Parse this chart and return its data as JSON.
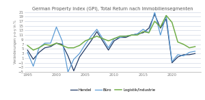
{
  "title": "German Property Index (GPI), Total Return nach Immobiliensegmenten",
  "ylabel": "Veränderungen y-o-y in %",
  "ylim": [
    -5,
    21
  ],
  "yticks": [
    -5,
    -3,
    -1,
    1,
    3,
    5,
    7,
    9,
    11,
    13,
    15,
    17,
    19,
    21
  ],
  "xlim": [
    1994.5,
    2025
  ],
  "xticks": [
    1995,
    2000,
    2005,
    2010,
    2015,
    2020
  ],
  "background_color": "#ffffff",
  "title_color": "#555555",
  "grid_color": "#d0d8e4",
  "series": {
    "Handel": {
      "color": "#1f3864",
      "linewidth": 0.9,
      "years": [
        1995,
        1996,
        1997,
        1998,
        1999,
        2000,
        2001,
        2002,
        2003,
        2004,
        2005,
        2006,
        2007,
        2008,
        2009,
        2010,
        2011,
        2012,
        2013,
        2014,
        2015,
        2016,
        2017,
        2018,
        2019,
        2020,
        2021,
        2022,
        2023,
        2024
      ],
      "values": [
        4.5,
        0.5,
        3.5,
        5.5,
        6.0,
        7.5,
        7.0,
        2.0,
        -4.5,
        1.5,
        5.0,
        8.5,
        12.5,
        8.5,
        4.5,
        8.5,
        10.0,
        10.0,
        11.0,
        11.5,
        12.0,
        14.0,
        20.0,
        14.0,
        18.0,
        -1.0,
        1.5,
        2.5,
        2.5,
        3.0
      ]
    },
    "Büro": {
      "color": "#5b9bd5",
      "linewidth": 0.9,
      "years": [
        1995,
        1996,
        1997,
        1998,
        1999,
        2000,
        2001,
        2002,
        2003,
        2004,
        2005,
        2006,
        2007,
        2008,
        2009,
        2010,
        2011,
        2012,
        2013,
        2014,
        2015,
        2016,
        2017,
        2018,
        2019,
        2020,
        2021,
        2022,
        2023,
        2024
      ],
      "values": [
        3.5,
        -2.5,
        5.5,
        7.5,
        7.5,
        14.5,
        8.5,
        -5.0,
        0.5,
        3.0,
        7.0,
        10.5,
        13.5,
        9.5,
        5.5,
        9.5,
        10.0,
        10.5,
        11.0,
        11.5,
        13.5,
        12.0,
        21.0,
        11.0,
        19.5,
        -0.5,
        2.5,
        2.0,
        3.5,
        4.0
      ]
    },
    "Logistik/Industrie": {
      "color": "#70ad47",
      "linewidth": 1.1,
      "years": [
        1995,
        1996,
        1997,
        1998,
        1999,
        2000,
        2001,
        2002,
        2003,
        2004,
        2005,
        2006,
        2007,
        2008,
        2009,
        2010,
        2011,
        2012,
        2013,
        2014,
        2015,
        2016,
        2017,
        2018,
        2019,
        2020,
        2021,
        2022,
        2023,
        2024
      ],
      "values": [
        6.5,
        4.5,
        5.5,
        7.0,
        6.5,
        7.5,
        6.5,
        5.5,
        5.5,
        6.5,
        8.5,
        9.5,
        10.5,
        9.5,
        8.5,
        9.5,
        10.5,
        10.5,
        11.0,
        11.0,
        12.5,
        12.0,
        17.0,
        14.5,
        19.5,
        16.5,
        8.0,
        7.0,
        5.5,
        6.0
      ]
    }
  }
}
